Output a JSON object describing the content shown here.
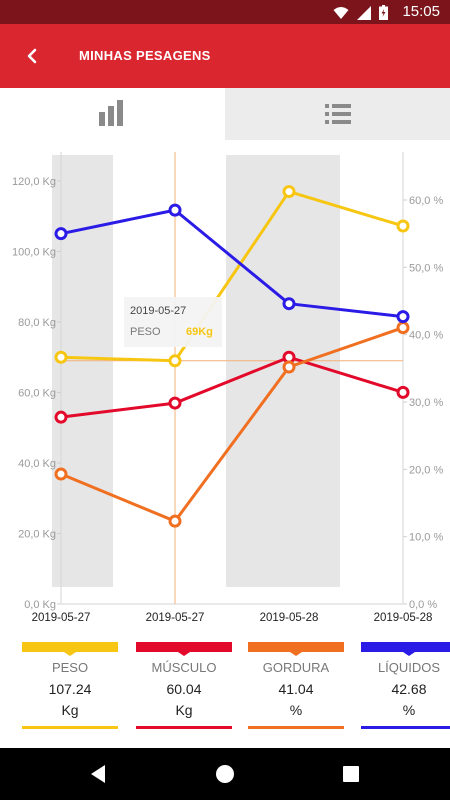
{
  "status_bar": {
    "time": "15:05"
  },
  "app_bar": {
    "title": "MINHAS PESAGENS"
  },
  "tabs": [
    {
      "name": "chart",
      "icon": "bar-chart-icon",
      "active": true
    },
    {
      "name": "list",
      "icon": "list-icon",
      "active": false
    }
  ],
  "chart_data": {
    "type": "line",
    "x": [
      "2019-05-27",
      "2019-05-27",
      "2019-05-28",
      "2019-05-28"
    ],
    "left_axis": {
      "unit": "Kg",
      "range": [
        0,
        120
      ],
      "ticks": [
        "0,0 Kg",
        "20,0 Kg",
        "40,0 Kg",
        "60,0 Kg",
        "80,0 Kg",
        "100,0 Kg",
        "120,0 Kg"
      ]
    },
    "right_axis": {
      "unit": "%",
      "range": [
        0,
        60
      ],
      "ticks": [
        "0,0 %",
        "10,0 %",
        "20,0 %",
        "30,0 %",
        "40,0 %",
        "50,0 %",
        "60,0 %"
      ]
    },
    "series": [
      {
        "name": "PESO",
        "axis": "left",
        "color": "#f7c613",
        "values": [
          70,
          69,
          117,
          107.24
        ]
      },
      {
        "name": "MÚSCULO",
        "axis": "left",
        "color": "#e3092a",
        "values": [
          53,
          57,
          70,
          60.04
        ]
      },
      {
        "name": "GORDURA",
        "axis": "right",
        "color": "#f06f20",
        "values": [
          19.3,
          12.3,
          35.2,
          41.04
        ]
      },
      {
        "name": "LÍQUIDOS",
        "axis": "right",
        "color": "#2b1be6",
        "values": [
          55,
          58.5,
          44.6,
          42.68
        ]
      }
    ],
    "tooltip": {
      "date": "2019-05-27",
      "label": "PESO",
      "value": "69Kg"
    },
    "grid": false
  },
  "legend": [
    {
      "name": "PESO",
      "value": "107.24",
      "unit": "Kg",
      "color": "#f7c613"
    },
    {
      "name": "MÚSCULO",
      "value": "60.04",
      "unit": "Kg",
      "color": "#e3092a"
    },
    {
      "name": "GORDURA",
      "value": "41.04",
      "unit": "%",
      "color": "#f06f20"
    },
    {
      "name": "LÍQUIDOS",
      "value": "42.68",
      "unit": "%",
      "color": "#2b1be6"
    }
  ]
}
